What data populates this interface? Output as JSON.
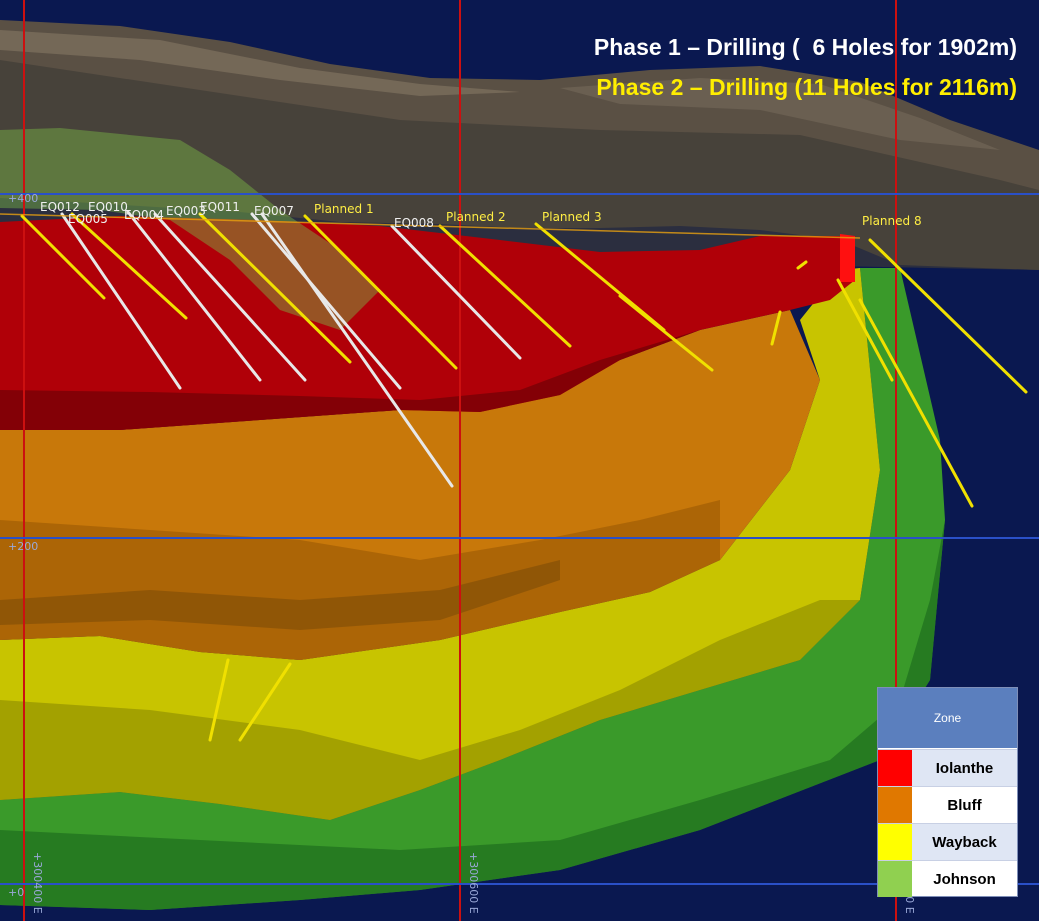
{
  "headline": {
    "phase1": "Phase 1 – Drilling (  6 Holes for 1902m)",
    "phase2": "Phase 2 – Drilling (11 Holes for 2116m)",
    "phase1_color": "#ffffff",
    "phase2_color": "#ffee00"
  },
  "hole_labels": {
    "eq012": "EQ012",
    "eq010": "EQ010",
    "eq005": "EQ005",
    "eq004": "EQ004",
    "eq003": "EQ003",
    "eq011": "EQ011",
    "eq007": "EQ007",
    "eq008": "EQ008",
    "planned1": "Planned 1",
    "planned2": "Planned 2",
    "planned3": "Planned 3",
    "planned8": "Planned 8"
  },
  "elevation_ticks": {
    "e400": "+400",
    "e200": "+200",
    "e0": "+0"
  },
  "easting_ticks": {
    "e300400": "+300400 E",
    "e300600": "+300600 E",
    "e300800": "+300800 E"
  },
  "legend": {
    "header": "Zone",
    "zones": [
      {
        "name": "Iolanthe",
        "color": "#ff0000"
      },
      {
        "name": "Bluff",
        "color": "#e07800"
      },
      {
        "name": "Wayback",
        "color": "#ffff00"
      },
      {
        "name": "Johnson",
        "color": "#90d050"
      }
    ]
  },
  "colors": {
    "background": "#0a1850",
    "gridline_vertical": "#cc1010",
    "gridline_horizontal": "#2a50c8",
    "phase1_hole": "#e8e8e8",
    "phase2_hole": "#f0e000"
  }
}
